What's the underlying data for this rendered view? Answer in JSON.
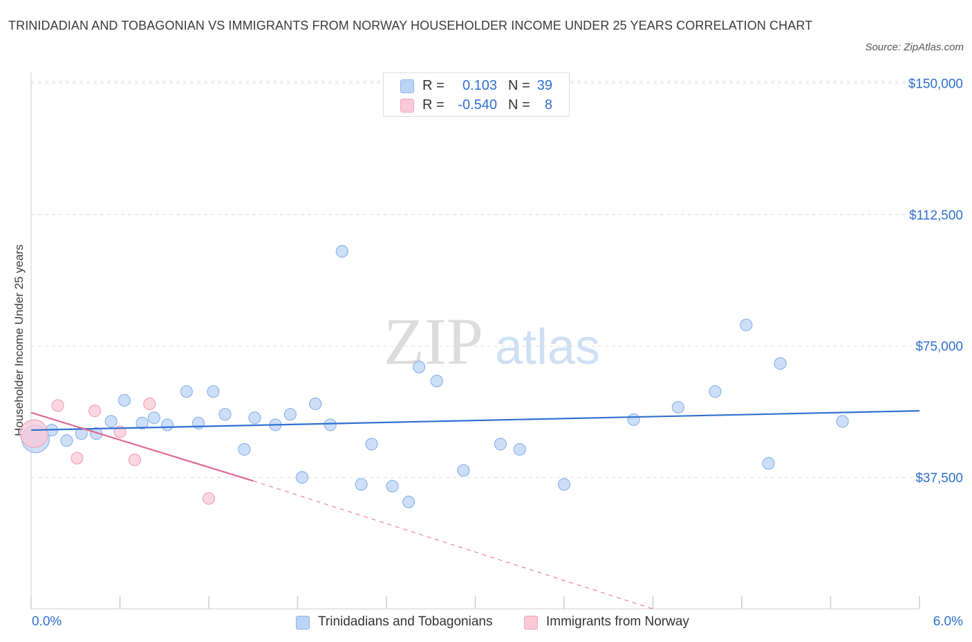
{
  "title": "TRINIDADIAN AND TOBAGONIAN VS IMMIGRANTS FROM NORWAY HOUSEHOLDER INCOME UNDER 25 YEARS CORRELATION CHART",
  "source": "Source: ZipAtlas.com",
  "watermark": {
    "zip": "ZIP",
    "atlas": "atlas"
  },
  "colors": {
    "blue_fill": "#bcd4f5",
    "blue_stroke": "#8db4e8",
    "blue_line": "#2f6fd0",
    "pink_fill": "#f9c9d7",
    "pink_stroke": "#f0a3ba",
    "pink_line": "#e0688f",
    "grid": "#dddddd",
    "axis_text": "#2f6fd0"
  },
  "legend": {
    "r_label": "R =",
    "n_label": "N =",
    "rows": [
      {
        "r": "0.103",
        "n": "39"
      },
      {
        "r": "-0.540",
        "n": "8"
      }
    ]
  },
  "chart_data": {
    "type": "scatter",
    "title": "TRINIDADIAN AND TOBAGONIAN VS IMMIGRANTS FROM NORWAY HOUSEHOLDER INCOME UNDER 25 YEARS CORRELATION CHART",
    "xlabel": "",
    "ylabel": "Householder Income Under 25 years",
    "xlim": [
      0,
      6
    ],
    "ylim": [
      0,
      155000
    ],
    "x_tick_labels": [
      "0.0%",
      "6.0%"
    ],
    "y_ticks": [
      37500,
      75000,
      112500,
      150000
    ],
    "y_tick_labels": [
      "$37,500",
      "$75,000",
      "$112,500",
      "$150,000"
    ],
    "grid": true,
    "legend_position": "bottom",
    "series": [
      {
        "name": "Trinidadians and Tobagonians",
        "color": "#bcd4f5",
        "points": [
          {
            "x": 0.03,
            "y": 48500,
            "big": true
          },
          {
            "x": 0.14,
            "y": 51000
          },
          {
            "x": 0.24,
            "y": 48000
          },
          {
            "x": 0.34,
            "y": 50000
          },
          {
            "x": 0.44,
            "y": 50000
          },
          {
            "x": 0.54,
            "y": 53500
          },
          {
            "x": 0.63,
            "y": 59500
          },
          {
            "x": 0.75,
            "y": 53000
          },
          {
            "x": 0.83,
            "y": 54500
          },
          {
            "x": 0.92,
            "y": 52500
          },
          {
            "x": 1.05,
            "y": 62000
          },
          {
            "x": 1.13,
            "y": 53000
          },
          {
            "x": 1.23,
            "y": 62000
          },
          {
            "x": 1.31,
            "y": 55500
          },
          {
            "x": 1.44,
            "y": 45500
          },
          {
            "x": 1.51,
            "y": 54500
          },
          {
            "x": 1.65,
            "y": 52500
          },
          {
            "x": 1.75,
            "y": 55500
          },
          {
            "x": 1.83,
            "y": 37500
          },
          {
            "x": 1.92,
            "y": 58500
          },
          {
            "x": 2.02,
            "y": 52500
          },
          {
            "x": 2.1,
            "y": 102000
          },
          {
            "x": 2.23,
            "y": 35500
          },
          {
            "x": 2.3,
            "y": 47000
          },
          {
            "x": 2.44,
            "y": 35000
          },
          {
            "x": 2.55,
            "y": 30500
          },
          {
            "x": 2.62,
            "y": 69000
          },
          {
            "x": 2.74,
            "y": 65000
          },
          {
            "x": 2.92,
            "y": 39500
          },
          {
            "x": 3.17,
            "y": 47000
          },
          {
            "x": 3.3,
            "y": 45500
          },
          {
            "x": 3.6,
            "y": 35500
          },
          {
            "x": 4.07,
            "y": 54000
          },
          {
            "x": 4.37,
            "y": 57500
          },
          {
            "x": 4.62,
            "y": 62000
          },
          {
            "x": 4.83,
            "y": 81000
          },
          {
            "x": 4.98,
            "y": 41500
          },
          {
            "x": 5.06,
            "y": 70000
          },
          {
            "x": 5.48,
            "y": 53500
          }
        ],
        "trend": {
          "x0": 0.0,
          "y0": 51000,
          "x1": 6.0,
          "y1": 56500
        }
      },
      {
        "name": "Immigrants from Norway",
        "color": "#f9c9d7",
        "points": [
          {
            "x": 0.02,
            "y": 50000,
            "big": true
          },
          {
            "x": 0.18,
            "y": 58000
          },
          {
            "x": 0.31,
            "y": 43000
          },
          {
            "x": 0.43,
            "y": 56500
          },
          {
            "x": 0.6,
            "y": 50500
          },
          {
            "x": 0.7,
            "y": 42500
          },
          {
            "x": 0.8,
            "y": 58500
          },
          {
            "x": 1.2,
            "y": 31500
          }
        ],
        "trend": {
          "x0": 0.0,
          "y0": 56000,
          "x1": 1.5,
          "y1": 36500,
          "dash_to_x": 4.2,
          "dash_to_y": 0
        }
      }
    ]
  }
}
